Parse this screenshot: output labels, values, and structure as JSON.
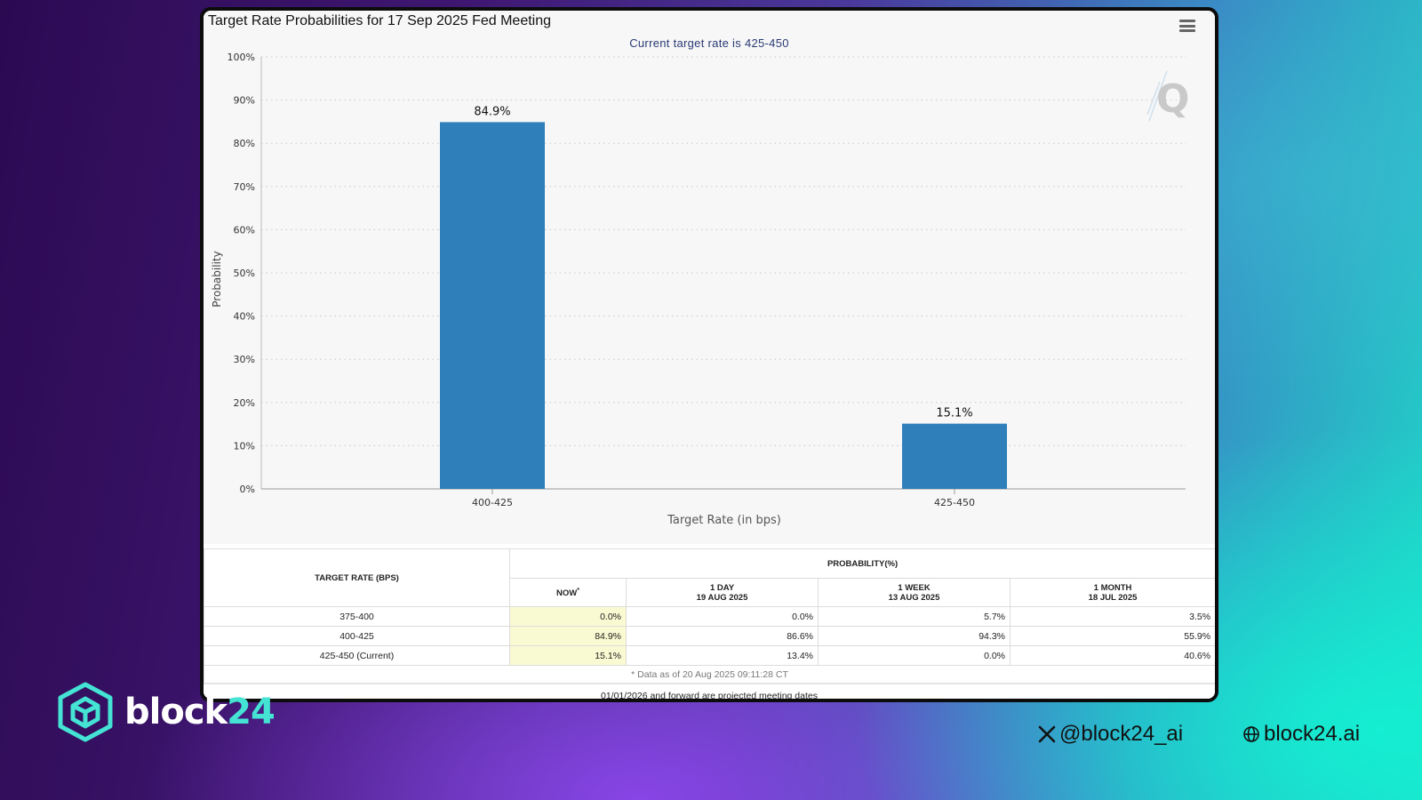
{
  "chart_data": {
    "type": "bar",
    "title": "Target Rate Probabilities for 17 Sep 2025 Fed Meeting",
    "subtitle": "Current target rate is 425-450",
    "xlabel": "Target Rate (in bps)",
    "ylabel": "Probability",
    "categories": [
      "400-425",
      "425-450"
    ],
    "values": [
      84.9,
      15.1
    ],
    "data_labels": [
      "84.9%",
      "15.1%"
    ],
    "ylim": [
      0,
      100
    ],
    "yticks": [
      "0%",
      "10%",
      "20%",
      "30%",
      "40%",
      "50%",
      "60%",
      "70%",
      "80%",
      "90%",
      "100%"
    ],
    "grid": true,
    "bar_color": "#2e7fba"
  },
  "table": {
    "col_rate": "TARGET RATE (BPS)",
    "col_prob": "PROBABILITY(%)",
    "sub_now": "NOW",
    "sub_now_mark": "*",
    "sub_1day": "1 DAY",
    "sub_1day_date": "19 AUG 2025",
    "sub_1week": "1 WEEK",
    "sub_1week_date": "13 AUG 2025",
    "sub_1month": "1 MONTH",
    "sub_1month_date": "18 JUL 2025",
    "rows": [
      {
        "rate": "375-400",
        "now": "0.0%",
        "day": "0.0%",
        "week": "5.7%",
        "month": "3.5%"
      },
      {
        "rate": "400-425",
        "now": "84.9%",
        "day": "86.6%",
        "week": "94.3%",
        "month": "55.9%"
      },
      {
        "rate": "425-450 (Current)",
        "now": "15.1%",
        "day": "13.4%",
        "week": "0.0%",
        "month": "40.6%"
      }
    ],
    "note": "* Data as of 20 Aug 2025 09:11:28 CT"
  },
  "footer_note": "01/01/2026 and forward are projected meeting dates",
  "brand": {
    "name_main": "block",
    "name_accent": "24",
    "icon": "hexagon-cube-logo"
  },
  "social": {
    "x_handle": "@block24_ai",
    "website": "block24.ai",
    "x_icon": "x-logo-icon",
    "web_icon": "globe-icon"
  },
  "colors": {
    "brand_accent": "#44e3d4",
    "now_highlight": "#fafad2"
  }
}
